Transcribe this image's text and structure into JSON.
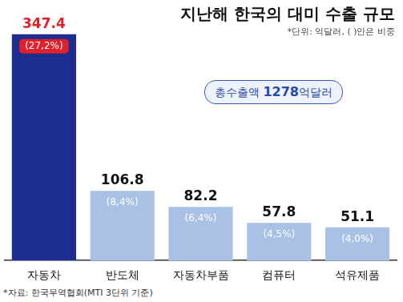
{
  "chart_data": {
    "type": "bar",
    "title": "지난해 한국의 대미 수출 규모",
    "subtitle": "*단위: 억달러, ( )안은 비중",
    "annotation": "총수출액 1278억달러",
    "source": "*자료: 한국무역협회(MTI 3단위 기준)",
    "categories": [
      "자동차",
      "반도체",
      "자동차부품",
      "컴퓨터",
      "석유제품"
    ],
    "values": [
      347.4,
      106.8,
      82.2,
      57.8,
      51.1
    ],
    "shares": [
      27.2,
      8.4,
      6.4,
      4.5,
      4.0
    ],
    "share_labels": [
      "(27,2%)",
      "(8,4%)",
      "(6,4%)",
      "(4,5%)",
      "(4,0%)"
    ],
    "colors": [
      "#1c2d8f",
      "#a9c1e4",
      "#a9c1e4",
      "#a9c1e4",
      "#a9c1e4"
    ],
    "ylim": [
      0,
      400
    ],
    "grid": false,
    "tick_labels": "x",
    "data_labels": true
  }
}
